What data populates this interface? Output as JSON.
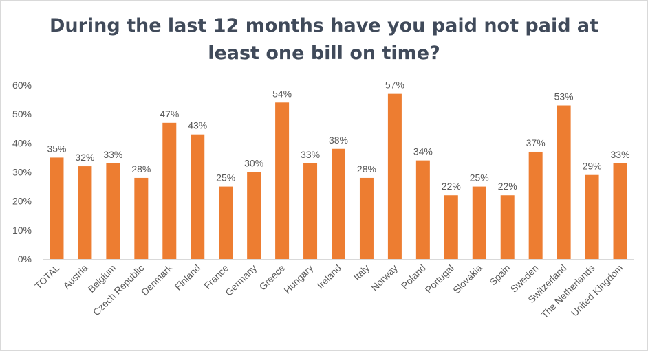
{
  "chart_data": {
    "type": "bar",
    "title_line1": "During the last 12 months have you paid not paid at",
    "title_line2": "least one bill on time?",
    "categories": [
      "TOTAL",
      "Austria",
      "Belgium",
      "Czech Republic",
      "Denmark",
      "Finland",
      "France",
      "Germany",
      "Greece",
      "Hungary",
      "Ireland",
      "Italy",
      "Norway",
      "Poland",
      "Portugal",
      "Slovakia",
      "Spain",
      "Sweden",
      "Switzerland",
      "The Netherlands",
      "United Kingdom"
    ],
    "values": [
      35,
      32,
      33,
      28,
      47,
      43,
      25,
      30,
      54,
      33,
      38,
      28,
      57,
      34,
      22,
      25,
      22,
      37,
      53,
      29,
      33
    ],
    "data_labels": [
      "35%",
      "32%",
      "33%",
      "28%",
      "47%",
      "43%",
      "25%",
      "30%",
      "54%",
      "33%",
      "38%",
      "28%",
      "57%",
      "34%",
      "22%",
      "25%",
      "22%",
      "37%",
      "53%",
      "29%",
      "33%"
    ],
    "ylim": [
      0,
      60
    ],
    "yticks": [
      "0%",
      "10%",
      "20%",
      "30%",
      "40%",
      "50%",
      "60%"
    ],
    "grid": false,
    "legend": "none",
    "bar_color": "#ed7d31"
  }
}
